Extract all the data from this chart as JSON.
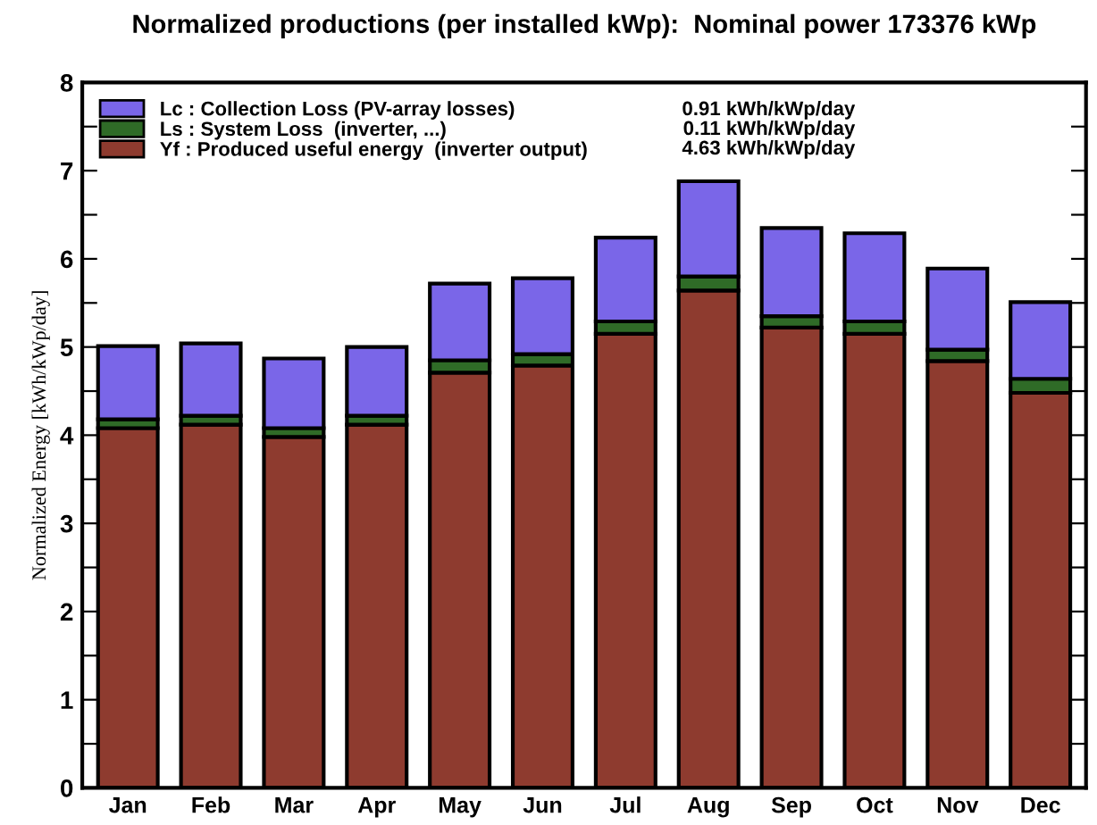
{
  "chart_data": {
    "type": "bar",
    "stacked": true,
    "title": "Normalized productions (per installed kWp):  Nominal power 173376 kWp",
    "ylabel": "Normalized Energy [kWh/kWp/day]",
    "categories": [
      "Jan",
      "Feb",
      "Mar",
      "Apr",
      "May",
      "Jun",
      "Jul",
      "Aug",
      "Sep",
      "Oct",
      "Nov",
      "Dec"
    ],
    "series": [
      {
        "name": "Yf : Produced useful energy  (inverter output)",
        "color": "#8e3b2f",
        "values": [
          4.08,
          4.12,
          3.98,
          4.12,
          4.71,
          4.79,
          5.15,
          5.64,
          5.22,
          5.15,
          4.84,
          4.48
        ]
      },
      {
        "name": "Ls : System Loss  (inverter, ...)",
        "color": "#2f6b27",
        "values": [
          0.1,
          0.1,
          0.1,
          0.1,
          0.14,
          0.13,
          0.14,
          0.16,
          0.13,
          0.14,
          0.13,
          0.16
        ]
      },
      {
        "name": "Lc : Collection Loss (PV-array losses)",
        "color": "#7a66e8",
        "values": [
          0.83,
          0.82,
          0.79,
          0.78,
          0.87,
          0.86,
          0.95,
          1.08,
          1.0,
          1.0,
          0.92,
          0.87
        ]
      }
    ],
    "annotations": [
      "4.63 kWh/kWp/day",
      "0.11 kWh/kWp/day",
      "0.91 kWh/kWp/day"
    ],
    "ylim": [
      0,
      8
    ],
    "yticks": [
      0,
      {
        "value": 0.5,
        "label": null
      },
      1,
      {
        "value": 1.5,
        "label": null
      },
      2,
      {
        "value": 2.5,
        "label": null
      },
      3,
      {
        "value": 3.5,
        "label": null
      },
      4,
      {
        "value": 4.5,
        "label": null
      },
      5,
      {
        "value": 5.5,
        "label": null
      },
      6,
      {
        "value": 6.5,
        "label": null
      },
      7,
      {
        "value": 7.5,
        "label": null
      },
      8
    ],
    "legend": "top left",
    "grid": false
  }
}
